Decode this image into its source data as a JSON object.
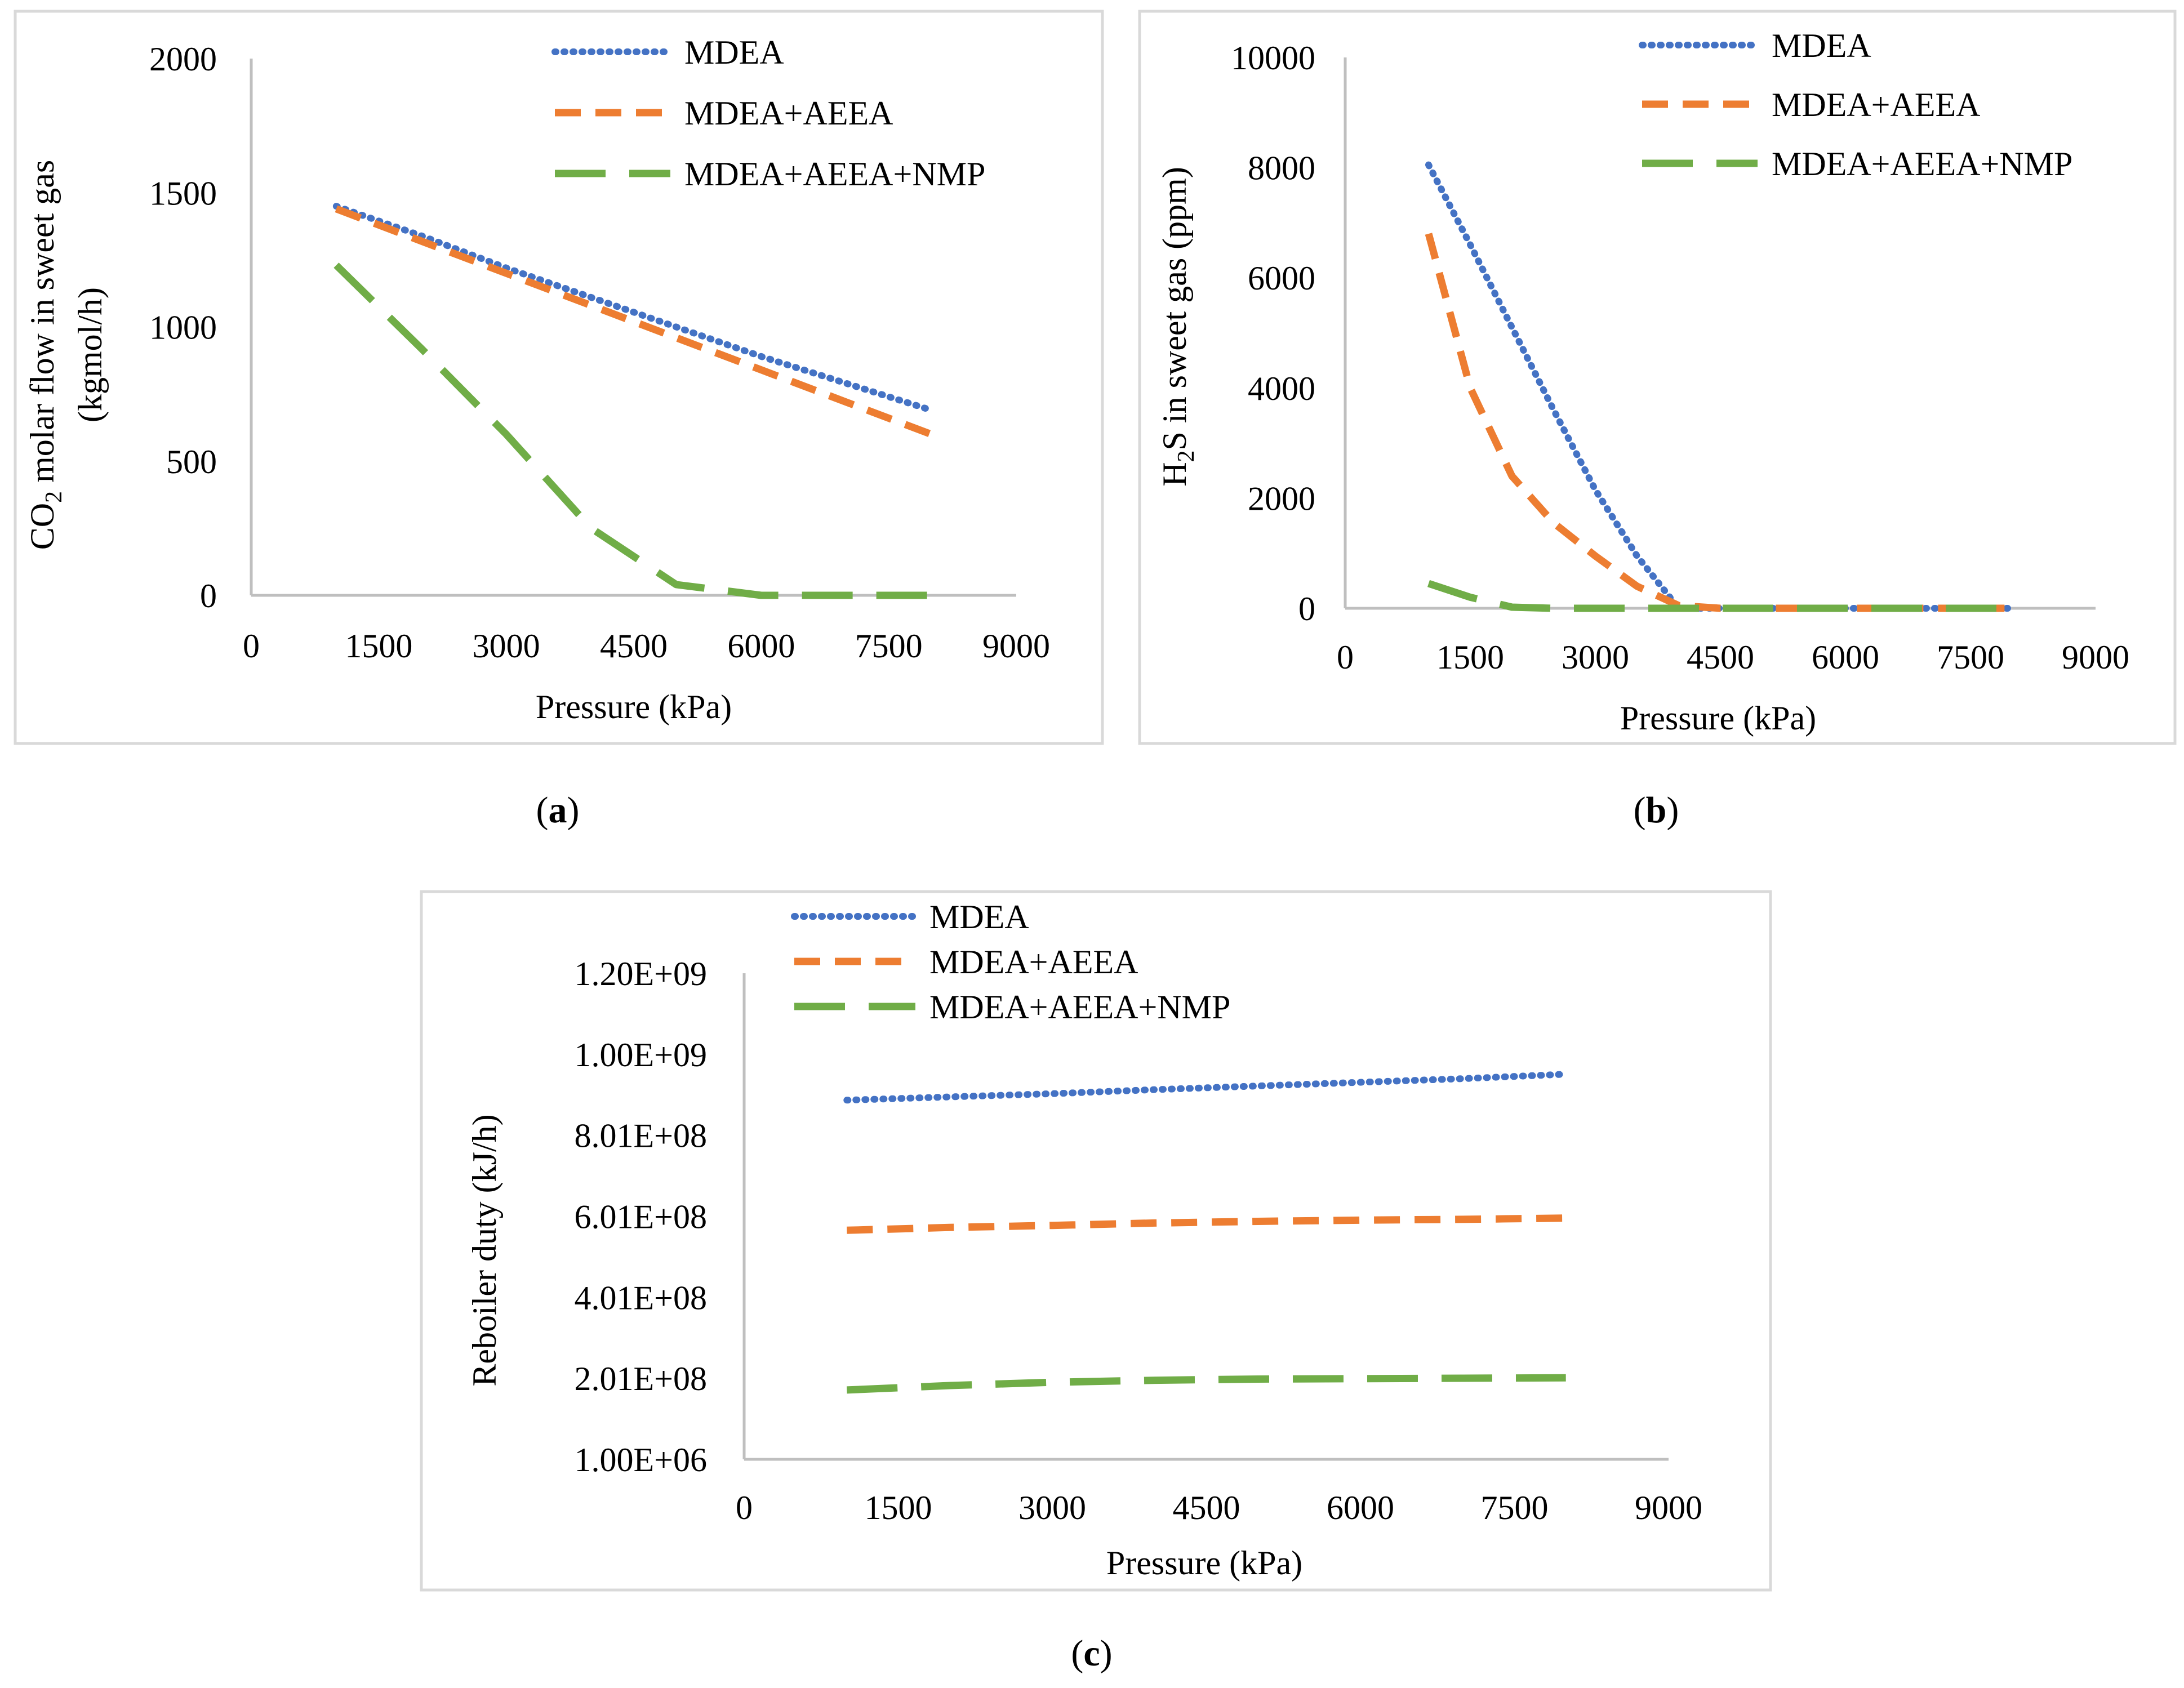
{
  "colors": {
    "MDEA": "#4472C4",
    "MDEA+AEEA": "#ED7D31",
    "MDEA+AEEA+NMP": "#70AD47",
    "frame": "#D9D9D9",
    "axis": "#BFBFBF"
  },
  "chart_data": [
    {
      "id": "a",
      "type": "line",
      "caption": "a",
      "title": "",
      "xlabel": "Pressure (kPa)",
      "ylabel_line1_parts": [
        "CO",
        "2",
        " molar flow in sweet gas"
      ],
      "ylabel_line2": "(kgmol/h)",
      "xlim": [
        0,
        9000
      ],
      "ylim": [
        0,
        2000
      ],
      "xticks": [
        "0",
        "1500",
        "3000",
        "4500",
        "6000",
        "7500",
        "9000"
      ],
      "yticks": [
        "0",
        "500",
        "1000",
        "1500",
        "2000"
      ],
      "x": [
        1000,
        2000,
        3000,
        4000,
        5000,
        6000,
        7000,
        8000
      ],
      "series": [
        {
          "name": "MDEA",
          "style": "dotted",
          "values": [
            1450,
            1340,
            1220,
            1110,
            1000,
            890,
            790,
            690
          ]
        },
        {
          "name": "MDEA+AEEA",
          "style": "dashed",
          "values": [
            1440,
            1320,
            1200,
            1080,
            960,
            840,
            720,
            600
          ]
        },
        {
          "name": "MDEA+AEEA+NMP",
          "style": "longdash",
          "values": [
            1230,
            920,
            600,
            250,
            40,
            0,
            0,
            0
          ]
        }
      ],
      "legend": [
        "MDEA",
        "MDEA+AEEA",
        "MDEA+AEEA+NMP"
      ],
      "legend_position": "top-right"
    },
    {
      "id": "b",
      "type": "line",
      "caption": "b",
      "title": "",
      "xlabel": "Pressure (kPa)",
      "ylabel_parts": [
        "H",
        "2",
        "S in sweet gas (ppm)"
      ],
      "xlim": [
        0,
        9000
      ],
      "ylim": [
        0,
        10000
      ],
      "xticks": [
        "0",
        "1500",
        "3000",
        "4500",
        "6000",
        "7500",
        "9000"
      ],
      "yticks": [
        "0",
        "2000",
        "4000",
        "6000",
        "8000",
        "10000"
      ],
      "x": [
        1000,
        1500,
        2000,
        2500,
        3000,
        3500,
        4000,
        4500,
        5000,
        6000,
        7000,
        8000
      ],
      "series": [
        {
          "name": "MDEA",
          "style": "dotted",
          "values": [
            8050,
            6600,
            5100,
            3600,
            2150,
            950,
            0,
            0,
            0,
            0,
            0,
            0
          ]
        },
        {
          "name": "MDEA+AEEA",
          "style": "dashed",
          "values": [
            6800,
            4000,
            2400,
            1550,
            950,
            400,
            50,
            0,
            0,
            0,
            0,
            0
          ]
        },
        {
          "name": "MDEA+AEEA+NMP",
          "style": "longdash",
          "values": [
            450,
            200,
            20,
            0,
            0,
            0,
            0,
            0,
            0,
            0,
            0,
            0
          ]
        }
      ],
      "legend": [
        "MDEA",
        "MDEA+AEEA",
        "MDEA+AEEA+NMP"
      ],
      "legend_position": "top-right"
    },
    {
      "id": "c",
      "type": "line",
      "caption": "c",
      "title": "",
      "xlabel": "Pressure (kPa)",
      "ylabel": "Reboiler duty (kJ/h)",
      "xlim": [
        0,
        9000
      ],
      "ylim": [
        1000000,
        1200000000
      ],
      "xticks": [
        "0",
        "1500",
        "3000",
        "4500",
        "6000",
        "7500",
        "9000"
      ],
      "yticks": [
        "1.00E+06",
        "2.01E+08",
        "4.01E+08",
        "6.01E+08",
        "8.01E+08",
        "1.00E+09",
        "1.20E+09"
      ],
      "x": [
        1000,
        2000,
        3000,
        4000,
        5000,
        6000,
        7000,
        8000
      ],
      "series": [
        {
          "name": "MDEA",
          "style": "dotted",
          "values": [
            887000000,
            895000000,
            903000000,
            913000000,
            922000000,
            931000000,
            940000000,
            951000000
          ]
        },
        {
          "name": "MDEA+AEEA",
          "style": "dashed",
          "values": [
            566000000,
            573000000,
            578000000,
            584000000,
            588000000,
            591000000,
            593000000,
            596000000
          ]
        },
        {
          "name": "MDEA+AEEA+NMP",
          "style": "longdash",
          "values": [
            172000000,
            183000000,
            191000000,
            196000000,
            199000000,
            200000000,
            201000000,
            202000000
          ]
        }
      ],
      "legend": [
        "MDEA",
        "MDEA+AEEA",
        "MDEA+AEEA+NMP"
      ],
      "legend_position": "top-center"
    }
  ]
}
